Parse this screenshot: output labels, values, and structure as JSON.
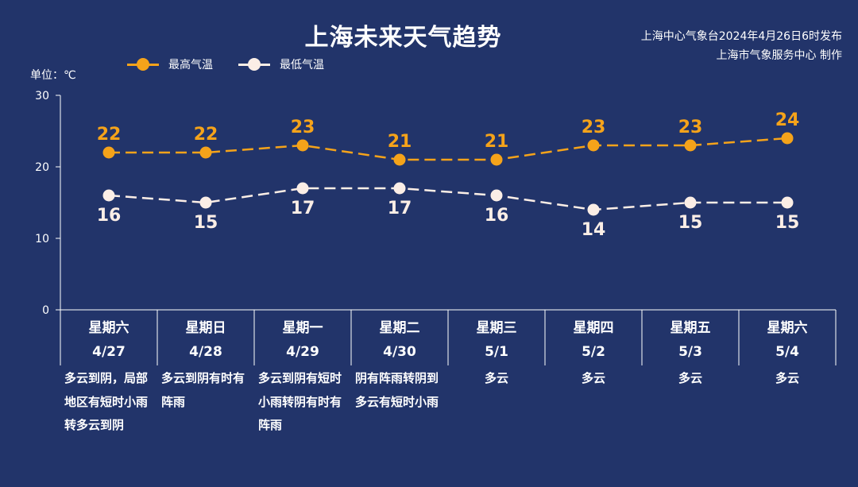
{
  "title": "上海未来天气趋势",
  "issuer": {
    "line1": "上海中心气象台2024年4月26日6时发布",
    "line2": "上海市气象服务中心 制作"
  },
  "unit_label": "单位：℃",
  "colors": {
    "background": "#22346a",
    "high": "#f5a31a",
    "low": "#fbeee6",
    "axis": "#ffffff"
  },
  "chart_data": {
    "type": "line",
    "categories": [
      "星期六 4/27",
      "星期日 4/28",
      "星期一 4/29",
      "星期二 4/30",
      "星期三 5/1",
      "星期四 5/2",
      "星期五 5/3",
      "星期六 5/4"
    ],
    "series": [
      {
        "name": "最高气温",
        "values": [
          22,
          22,
          23,
          21,
          21,
          23,
          23,
          24
        ]
      },
      {
        "name": "最低气温",
        "values": [
          16,
          15,
          17,
          17,
          16,
          14,
          15,
          15
        ]
      }
    ],
    "yticks": [
      0,
      10,
      20,
      30
    ],
    "ylim": [
      0,
      30
    ],
    "ylabel": "单位：℃",
    "legend_position": "top-left",
    "line_style": "dashed"
  },
  "days": [
    {
      "weekday": "星期六",
      "date": "4/27",
      "weather": "多云到阴，局部地区有短时小雨转多云到阴"
    },
    {
      "weekday": "星期日",
      "date": "4/28",
      "weather": "多云到阴有时有阵雨"
    },
    {
      "weekday": "星期一",
      "date": "4/29",
      "weather": "多云到阴有短时小雨转阴有时有阵雨"
    },
    {
      "weekday": "星期二",
      "date": "4/30",
      "weather": "阴有阵雨转阴到多云有短时小雨"
    },
    {
      "weekday": "星期三",
      "date": "5/1",
      "weather": "多云"
    },
    {
      "weekday": "星期四",
      "date": "5/2",
      "weather": "多云"
    },
    {
      "weekday": "星期五",
      "date": "5/3",
      "weather": "多云"
    },
    {
      "weekday": "星期六",
      "date": "5/4",
      "weather": "多云"
    }
  ]
}
